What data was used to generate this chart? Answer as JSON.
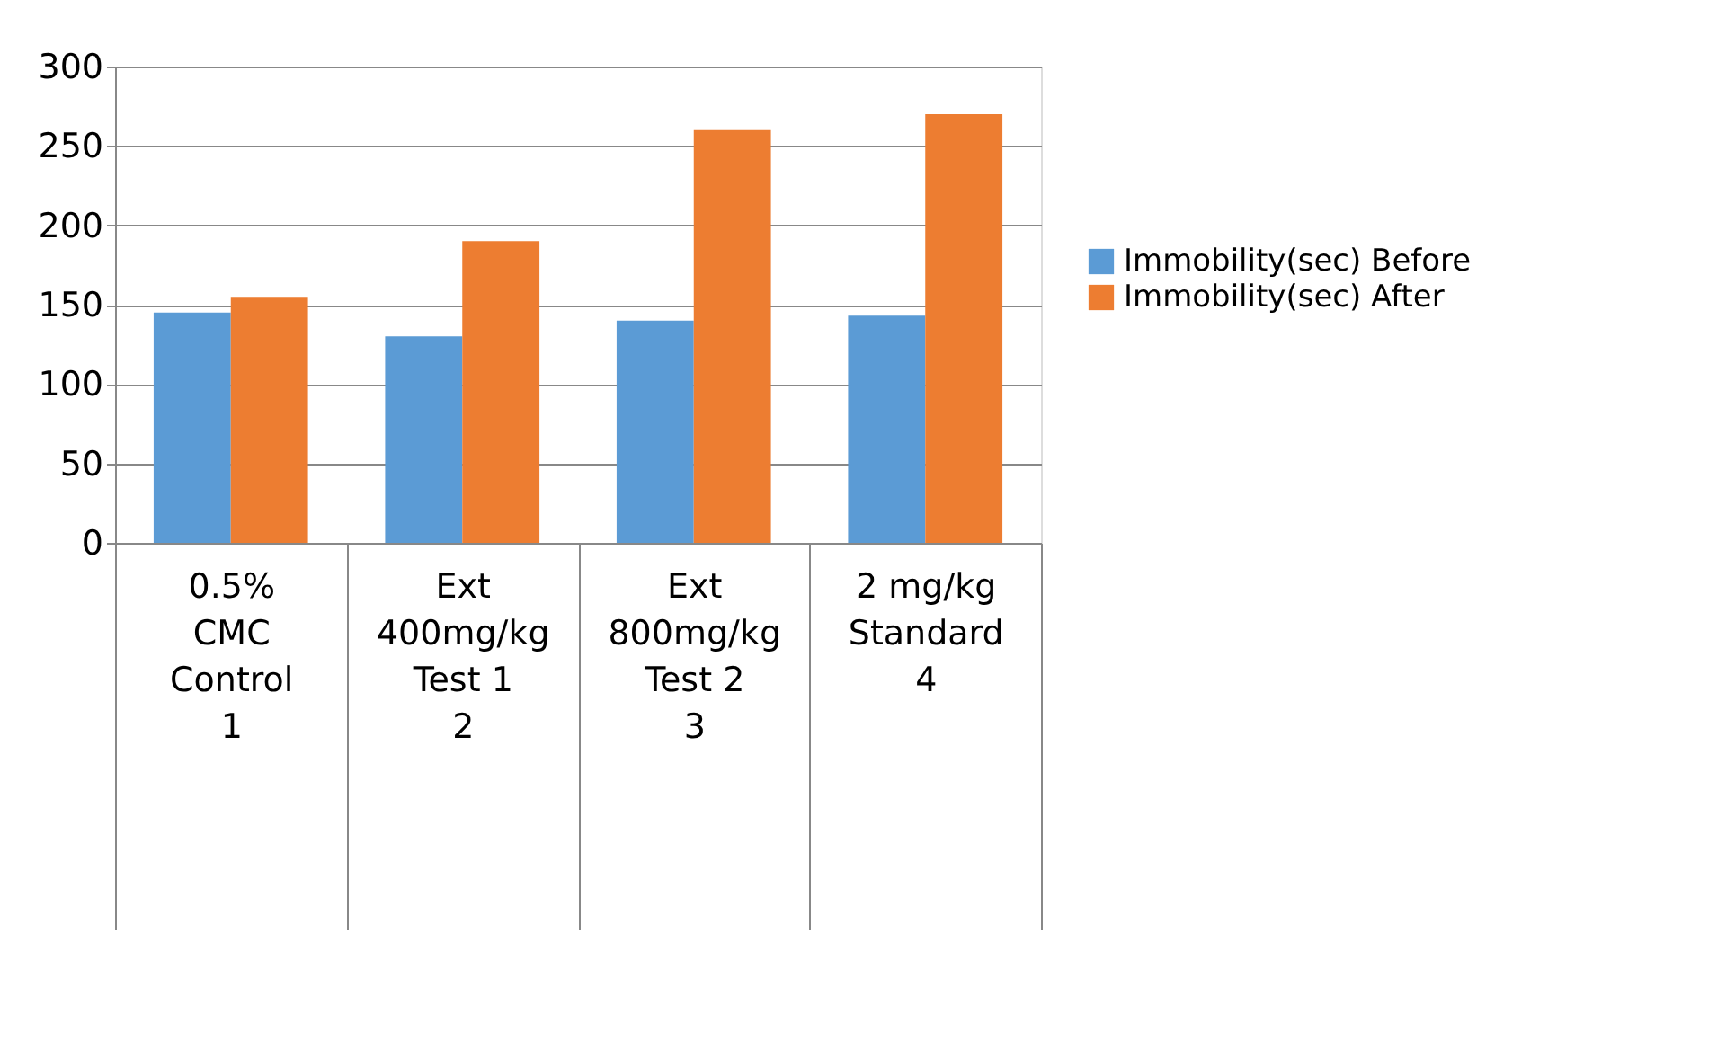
{
  "chart_data": {
    "type": "bar",
    "categories": [
      "0.5%\nCMC\n\nControl\n\n1",
      "Ext\n400mg/kg\n\nTest 1\n\n2",
      "Ext\n800mg/kg\n\nTest 2\n\n3",
      "2 mg/kg\n\n\nStandard\n\n4"
    ],
    "series": [
      {
        "name": "Immobility(sec) Before",
        "color": "#5b9bd5",
        "values": [
          145,
          130,
          140,
          143
        ]
      },
      {
        "name": "Immobility(sec) After",
        "color": "#ed7d31",
        "values": [
          155,
          190,
          260,
          270
        ]
      }
    ],
    "ylim": [
      0,
      300
    ],
    "yticks": [
      0,
      50,
      100,
      150,
      200,
      250,
      300
    ],
    "grid": "y",
    "legend": "right"
  }
}
